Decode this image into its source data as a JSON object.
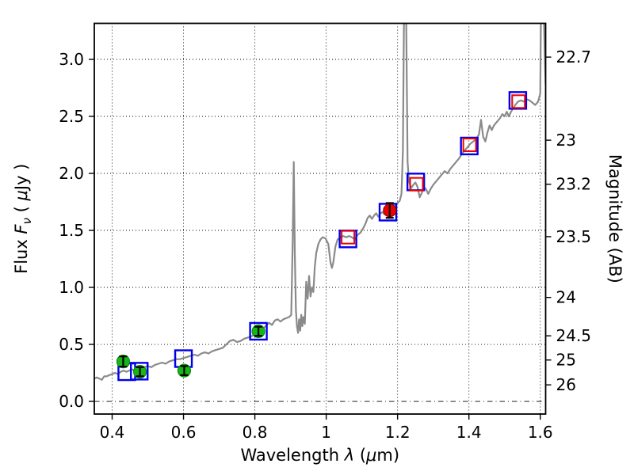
{
  "figure": {
    "description": "Spectral energy distribution plot: galaxy model spectrum with observed and model photometry",
    "background": "#ffffff"
  },
  "chart_data": {
    "type": "line",
    "title": "",
    "xlabel_parts": [
      {
        "t": "Wavelength  ",
        "i": false
      },
      {
        "t": "λ",
        "i": true
      },
      {
        "t": " (",
        "i": false
      },
      {
        "t": "μ",
        "i": true
      },
      {
        "t": "m)",
        "i": false
      }
    ],
    "ylabel_left_parts": [
      {
        "t": "Flux  ",
        "i": false
      },
      {
        "t": "F",
        "i": true
      },
      {
        "t": "ν",
        "i": true,
        "sub": true
      },
      {
        "t": "  ( ",
        "i": false
      },
      {
        "t": "μ",
        "i": true
      },
      {
        "t": "Jy )",
        "i": false
      }
    ],
    "ylabel_right": "Magnitude (AB)",
    "xlim": [
      0.35,
      1.615
    ],
    "ylim": [
      -0.111,
      3.316
    ],
    "grid": true,
    "x_ticks": [
      {
        "v": 0.4,
        "label": "0.4"
      },
      {
        "v": 0.6,
        "label": "0.6"
      },
      {
        "v": 0.8,
        "label": "0.8"
      },
      {
        "v": 1.0,
        "label": "1"
      },
      {
        "v": 1.2,
        "label": "1.2"
      },
      {
        "v": 1.4,
        "label": "1.4"
      },
      {
        "v": 1.6,
        "label": "1.6"
      }
    ],
    "y_ticks_left": [
      {
        "v": 0.0,
        "label": "0.0"
      },
      {
        "v": 0.5,
        "label": "0.5"
      },
      {
        "v": 1.0,
        "label": "1.0"
      },
      {
        "v": 1.5,
        "label": "1.5"
      },
      {
        "v": 2.0,
        "label": "2.0"
      },
      {
        "v": 2.5,
        "label": "2.5"
      },
      {
        "v": 3.0,
        "label": "3.0"
      }
    ],
    "y_ticks_right": [
      {
        "mag": 22.7,
        "label": "22.7",
        "flux": 3.02
      },
      {
        "mag": 23.0,
        "label": "23",
        "flux": 2.291
      },
      {
        "mag": 23.2,
        "label": "23.2",
        "flux": 1.905
      },
      {
        "mag": 23.5,
        "label": "23.5",
        "flux": 1.445
      },
      {
        "mag": 24.0,
        "label": "24",
        "flux": 0.912
      },
      {
        "mag": 24.5,
        "label": "24.5",
        "flux": 0.575
      },
      {
        "mag": 25.0,
        "label": "25",
        "flux": 0.363
      },
      {
        "mag": 26.0,
        "label": "26",
        "flux": 0.145
      }
    ],
    "style": {
      "spectrum_color": "#8a8a8a",
      "spectrum_linewidth": 2.2,
      "green_fill": "#17b517",
      "green_edge": "#0b8f0b",
      "red_color": "#ee0000",
      "blue_color": "#0000ee",
      "errorbar_color": "#000000",
      "grid_color": "#000000",
      "spine_color": "#000000",
      "blue_square_half": 10.5,
      "red_square_half": 8,
      "circle_radius": 8,
      "cap_half": 5
    },
    "series": [
      {
        "name": "model-spectrum",
        "type": "line",
        "points": [
          [
            0.35,
            0.2
          ],
          [
            0.357,
            0.21
          ],
          [
            0.364,
            0.2
          ],
          [
            0.371,
            0.19
          ],
          [
            0.378,
            0.22
          ],
          [
            0.385,
            0.22
          ],
          [
            0.392,
            0.23
          ],
          [
            0.4,
            0.24
          ],
          [
            0.408,
            0.25
          ],
          [
            0.416,
            0.24
          ],
          [
            0.424,
            0.26
          ],
          [
            0.432,
            0.27
          ],
          [
            0.44,
            0.26
          ],
          [
            0.448,
            0.27
          ],
          [
            0.456,
            0.28
          ],
          [
            0.464,
            0.27
          ],
          [
            0.472,
            0.28
          ],
          [
            0.48,
            0.29
          ],
          [
            0.49,
            0.3
          ],
          [
            0.5,
            0.31
          ],
          [
            0.51,
            0.3
          ],
          [
            0.52,
            0.32
          ],
          [
            0.53,
            0.33
          ],
          [
            0.54,
            0.34
          ],
          [
            0.55,
            0.33
          ],
          [
            0.56,
            0.35
          ],
          [
            0.57,
            0.36
          ],
          [
            0.58,
            0.37
          ],
          [
            0.59,
            0.37
          ],
          [
            0.6,
            0.38
          ],
          [
            0.61,
            0.39
          ],
          [
            0.62,
            0.4
          ],
          [
            0.63,
            0.41
          ],
          [
            0.64,
            0.4
          ],
          [
            0.65,
            0.42
          ],
          [
            0.66,
            0.43
          ],
          [
            0.67,
            0.42
          ],
          [
            0.68,
            0.44
          ],
          [
            0.69,
            0.45
          ],
          [
            0.7,
            0.46
          ],
          [
            0.71,
            0.47
          ],
          [
            0.72,
            0.5
          ],
          [
            0.73,
            0.53
          ],
          [
            0.74,
            0.54
          ],
          [
            0.75,
            0.52
          ],
          [
            0.76,
            0.53
          ],
          [
            0.77,
            0.55
          ],
          [
            0.78,
            0.56
          ],
          [
            0.79,
            0.57
          ],
          [
            0.8,
            0.59
          ],
          [
            0.81,
            0.61
          ],
          [
            0.82,
            0.63
          ],
          [
            0.83,
            0.66
          ],
          [
            0.84,
            0.69
          ],
          [
            0.848,
            0.67
          ],
          [
            0.856,
            0.71
          ],
          [
            0.864,
            0.72
          ],
          [
            0.872,
            0.7
          ],
          [
            0.88,
            0.72
          ],
          [
            0.888,
            0.73
          ],
          [
            0.896,
            0.74
          ],
          [
            0.902,
            0.76
          ],
          [
            0.906,
            1.4
          ],
          [
            0.909,
            2.1
          ],
          [
            0.912,
            1.3
          ],
          [
            0.915,
            0.8
          ],
          [
            0.918,
            0.66
          ],
          [
            0.921,
            0.6
          ],
          [
            0.924,
            0.72
          ],
          [
            0.927,
            0.62
          ],
          [
            0.93,
            0.76
          ],
          [
            0.933,
            0.66
          ],
          [
            0.936,
            0.74
          ],
          [
            0.94,
            0.68
          ],
          [
            0.944,
            1.05
          ],
          [
            0.948,
            0.9
          ],
          [
            0.952,
            1.1
          ],
          [
            0.956,
            0.92
          ],
          [
            0.96,
            1.0
          ],
          [
            0.964,
            0.96
          ],
          [
            0.968,
            1.18
          ],
          [
            0.972,
            1.3
          ],
          [
            0.978,
            1.38
          ],
          [
            0.984,
            1.42
          ],
          [
            0.99,
            1.44
          ],
          [
            0.998,
            1.43
          ],
          [
            1.006,
            1.38
          ],
          [
            1.012,
            1.22
          ],
          [
            1.016,
            1.17
          ],
          [
            1.02,
            1.22
          ],
          [
            1.026,
            1.36
          ],
          [
            1.032,
            1.42
          ],
          [
            1.04,
            1.44
          ],
          [
            1.048,
            1.45
          ],
          [
            1.056,
            1.44
          ],
          [
            1.064,
            1.45
          ],
          [
            1.072,
            1.44
          ],
          [
            1.08,
            1.42
          ],
          [
            1.088,
            1.46
          ],
          [
            1.096,
            1.48
          ],
          [
            1.104,
            1.52
          ],
          [
            1.11,
            1.56
          ],
          [
            1.116,
            1.61
          ],
          [
            1.122,
            1.63
          ],
          [
            1.128,
            1.6
          ],
          [
            1.134,
            1.63
          ],
          [
            1.14,
            1.65
          ],
          [
            1.146,
            1.62
          ],
          [
            1.152,
            1.65
          ],
          [
            1.158,
            1.66
          ],
          [
            1.164,
            1.64
          ],
          [
            1.17,
            1.66
          ],
          [
            1.176,
            1.68
          ],
          [
            1.182,
            1.67
          ],
          [
            1.188,
            1.7
          ],
          [
            1.194,
            1.72
          ],
          [
            1.2,
            1.74
          ],
          [
            1.206,
            1.76
          ],
          [
            1.211,
            1.82
          ],
          [
            1.215,
            2.2
          ],
          [
            1.218,
            3.4
          ],
          [
            1.224,
            3.4
          ],
          [
            1.228,
            2.1
          ],
          [
            1.232,
            1.93
          ],
          [
            1.238,
            1.87
          ],
          [
            1.244,
            1.9
          ],
          [
            1.25,
            1.92
          ],
          [
            1.256,
            1.88
          ],
          [
            1.262,
            1.79
          ],
          [
            1.268,
            1.83
          ],
          [
            1.274,
            1.88
          ],
          [
            1.28,
            1.86
          ],
          [
            1.286,
            1.82
          ],
          [
            1.292,
            1.86
          ],
          [
            1.3,
            1.9
          ],
          [
            1.308,
            1.93
          ],
          [
            1.316,
            1.96
          ],
          [
            1.324,
            1.99
          ],
          [
            1.332,
            2.02
          ],
          [
            1.34,
            2.0
          ],
          [
            1.348,
            2.04
          ],
          [
            1.356,
            2.07
          ],
          [
            1.364,
            2.1
          ],
          [
            1.372,
            2.13
          ],
          [
            1.38,
            2.17
          ],
          [
            1.388,
            2.2
          ],
          [
            1.396,
            2.23
          ],
          [
            1.404,
            2.26
          ],
          [
            1.412,
            2.28
          ],
          [
            1.42,
            2.3
          ],
          [
            1.428,
            2.34
          ],
          [
            1.434,
            2.47
          ],
          [
            1.44,
            2.32
          ],
          [
            1.446,
            2.28
          ],
          [
            1.452,
            2.36
          ],
          [
            1.458,
            2.42
          ],
          [
            1.464,
            2.38
          ],
          [
            1.47,
            2.42
          ],
          [
            1.478,
            2.45
          ],
          [
            1.486,
            2.48
          ],
          [
            1.494,
            2.52
          ],
          [
            1.5,
            2.5
          ],
          [
            1.506,
            2.54
          ],
          [
            1.512,
            2.5
          ],
          [
            1.518,
            2.54
          ],
          [
            1.524,
            2.57
          ],
          [
            1.53,
            2.6
          ],
          [
            1.538,
            2.63
          ],
          [
            1.546,
            2.64
          ],
          [
            1.554,
            2.63
          ],
          [
            1.562,
            2.65
          ],
          [
            1.57,
            2.64
          ],
          [
            1.578,
            2.62
          ],
          [
            1.586,
            2.6
          ],
          [
            1.594,
            2.63
          ],
          [
            1.6,
            2.7
          ],
          [
            1.602,
            3.4
          ],
          [
            1.61,
            3.4
          ],
          [
            1.6125,
            3.05
          ],
          [
            1.615,
            2.78
          ]
        ]
      },
      {
        "name": "model-photometry-blue-squares",
        "type": "scatter",
        "marker": "open-square",
        "points": [
          {
            "x": 0.441,
            "y": 0.26
          },
          {
            "x": 0.476,
            "y": 0.265
          },
          {
            "x": 0.6,
            "y": 0.375
          },
          {
            "x": 0.81,
            "y": 0.615
          },
          {
            "x": 1.061,
            "y": 1.425
          },
          {
            "x": 1.173,
            "y": 1.66
          },
          {
            "x": 1.251,
            "y": 1.925
          },
          {
            "x": 1.401,
            "y": 2.24
          },
          {
            "x": 1.537,
            "y": 2.64
          }
        ]
      },
      {
        "name": "observed-optical-green-circles",
        "type": "scatter",
        "marker": "filled-circle-errorbar",
        "points": [
          {
            "x": 0.431,
            "y": 0.35,
            "yerr": 0.045
          },
          {
            "x": 0.478,
            "y": 0.26,
            "yerr": 0.04
          },
          {
            "x": 0.602,
            "y": 0.27,
            "yerr": 0.04
          },
          {
            "x": 0.81,
            "y": 0.615,
            "yerr": 0.04
          }
        ]
      },
      {
        "name": "observed-nir-red-squares",
        "type": "scatter",
        "marker": "open-square",
        "points": [
          {
            "x": 1.061,
            "y": 1.44
          },
          {
            "x": 1.253,
            "y": 1.905
          },
          {
            "x": 1.402,
            "y": 2.25
          },
          {
            "x": 1.539,
            "y": 2.63
          }
        ]
      },
      {
        "name": "observed-nir-red-circle",
        "type": "scatter",
        "marker": "filled-circle-errorbar",
        "points": [
          {
            "x": 1.178,
            "y": 1.675,
            "yerr": 0.065
          }
        ]
      }
    ]
  }
}
